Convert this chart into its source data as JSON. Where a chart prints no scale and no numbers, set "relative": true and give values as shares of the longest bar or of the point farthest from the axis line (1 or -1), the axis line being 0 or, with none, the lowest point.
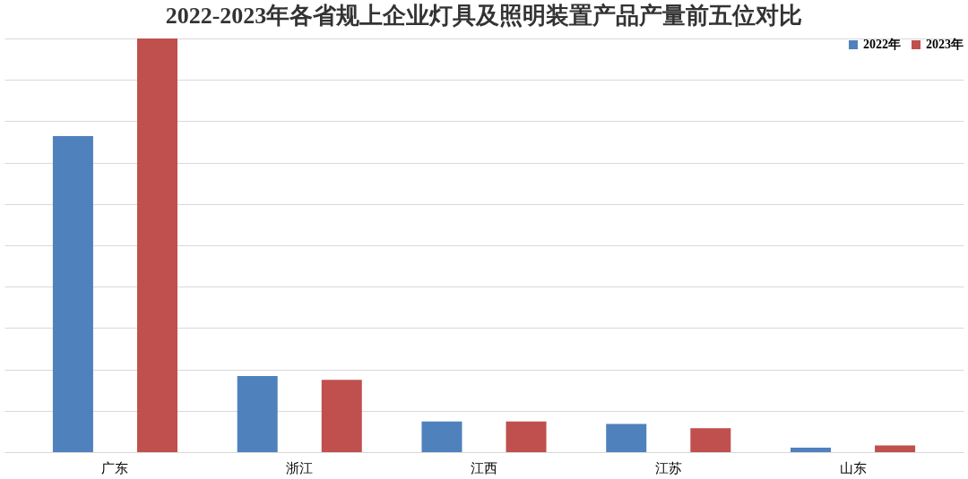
{
  "chart_data": {
    "type": "bar",
    "title": "2022-2023年各省规上企业灯具及照明装置产品产量前五位对比",
    "relative": true,
    "categories": [
      "广东",
      "浙江",
      "江西",
      "江苏",
      "山东"
    ],
    "series": [
      {
        "name": "2022年",
        "color": "#4f81bd",
        "values": [
          0.764,
          0.184,
          0.074,
          0.068,
          0.011
        ]
      },
      {
        "name": "2023年",
        "color": "#c0504d",
        "values": [
          1.0,
          0.175,
          0.074,
          0.058,
          0.016
        ]
      }
    ],
    "grid": "y",
    "legend": "top right"
  }
}
